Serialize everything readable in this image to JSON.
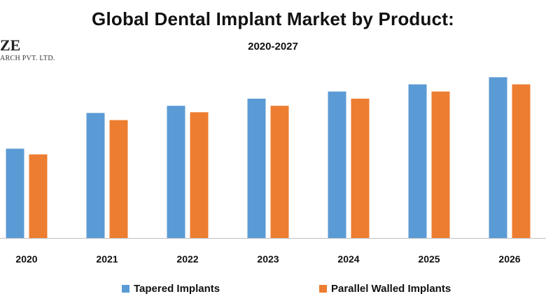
{
  "watermark": {
    "brand": "ZE",
    "line": "ARCH PVT. LTD."
  },
  "chart_data": {
    "type": "bar",
    "title": "Global Dental Implant Market by Product:",
    "subtitle": "2020-2027",
    "categories": [
      "2020",
      "2021",
      "2022",
      "2023",
      "2024",
      "2025",
      "2026"
    ],
    "series": [
      {
        "name": "Tapered Implants",
        "color": "#5B9BD5",
        "values": [
          125,
          175,
          185,
          195,
          205,
          215,
          225
        ]
      },
      {
        "name": "Parallel Walled Implants",
        "color": "#ED7D31",
        "values": [
          117,
          165,
          176,
          185,
          195,
          205,
          215
        ]
      }
    ],
    "ylim": [
      0,
      240
    ],
    "grid": false,
    "legend": "bottom"
  }
}
